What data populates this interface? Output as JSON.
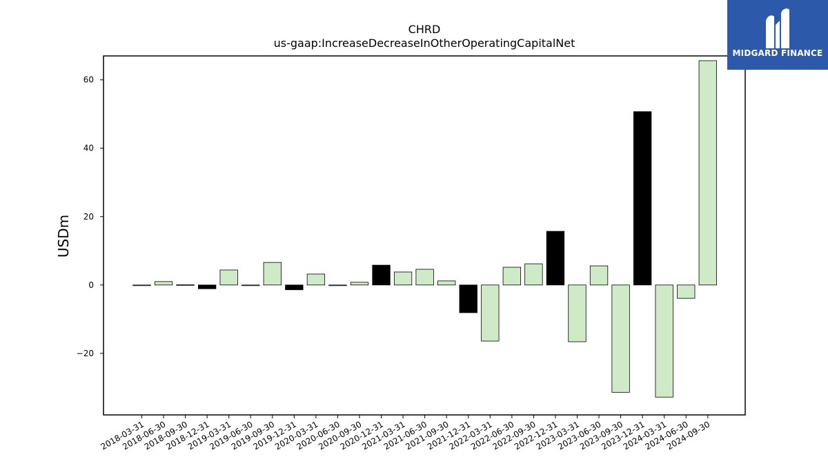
{
  "chart_data": {
    "type": "bar",
    "title": "CHRD",
    "subtitle": "us-gaap:IncreaseDecreaseInOtherOperatingCapitalNet",
    "ylabel": "USDm",
    "xlabel": "",
    "ylim": [
      -38,
      67
    ],
    "yticks": [
      -20,
      0,
      20,
      40,
      60
    ],
    "grid": false,
    "categories": [
      "2018-03-31",
      "2018-06-30",
      "2018-09-30",
      "2018-12-31",
      "2019-03-31",
      "2019-06-30",
      "2019-09-30",
      "2019-12-31",
      "2020-03-31",
      "2020-06-30",
      "2020-09-30",
      "2020-12-31",
      "2021-03-31",
      "2021-06-30",
      "2021-09-30",
      "2021-12-31",
      "2022-03-31",
      "2022-06-30",
      "2022-09-30",
      "2022-12-31",
      "2023-03-31",
      "2023-06-30",
      "2023-09-30",
      "2023-12-31",
      "2024-03-31",
      "2024-06-30",
      "2024-09-30"
    ],
    "values": [
      -0.2,
      1.0,
      0.1,
      -1.1,
      4.4,
      0.0,
      6.6,
      -1.4,
      3.2,
      0.0,
      0.8,
      5.8,
      3.8,
      4.6,
      1.2,
      -8.1,
      -16.4,
      5.2,
      6.2,
      15.7,
      -16.6,
      5.6,
      -31.4,
      50.7,
      -32.8,
      -3.9,
      65.6
    ],
    "q4_color": "#000000",
    "other_color": "#cfeac7"
  },
  "logo": {
    "text": "MIDGARD FINANCE",
    "icon": "midgard-logo-icon",
    "color": "#2d59aa"
  }
}
